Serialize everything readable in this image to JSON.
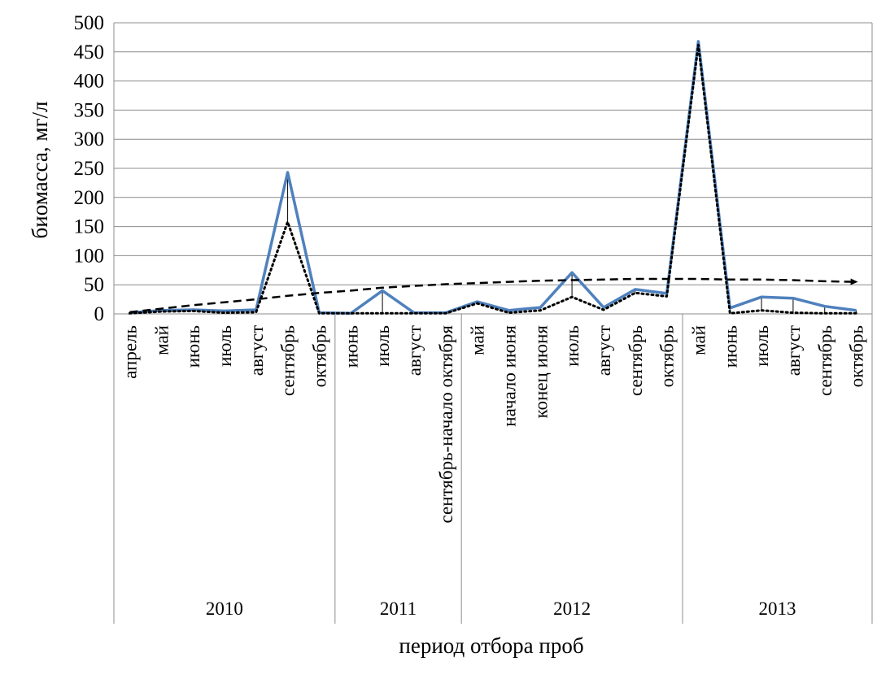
{
  "chart_data": {
    "type": "line",
    "title": "",
    "xlabel": "период отбора проб",
    "ylabel": "биомасса, мг/л",
    "ylim": [
      0,
      500
    ],
    "yticks": [
      0,
      50,
      100,
      150,
      200,
      250,
      300,
      350,
      400,
      450,
      500
    ],
    "grid": true,
    "legend": "none",
    "categories": [
      "апрель",
      "май",
      "июнь",
      "июль",
      "август",
      "сентябрь",
      "октябрь",
      "июнь",
      "июль",
      "август",
      "сентябрь-начало октября",
      "май",
      "начало июня",
      "конец июня",
      "июль",
      "август",
      "сентябрь",
      "октябрь",
      "май",
      "июнь",
      "июль",
      "август",
      "сентябрь",
      "октябрь"
    ],
    "groups": [
      {
        "label": "2010",
        "count": 7
      },
      {
        "label": "2011",
        "count": 4
      },
      {
        "label": "2012",
        "count": 7
      },
      {
        "label": "2013",
        "count": 6
      }
    ],
    "series": [
      {
        "style": "solid",
        "color": "#4f81bd",
        "values": [
          2,
          6,
          7,
          5,
          7,
          243,
          2,
          1,
          40,
          2,
          2,
          21,
          6,
          11,
          71,
          11,
          42,
          35,
          468,
          10,
          29,
          27,
          13,
          6
        ]
      },
      {
        "style": "dotted",
        "color": "#000000",
        "values": [
          1,
          4,
          5,
          2,
          3,
          158,
          1,
          1,
          1,
          1,
          1,
          18,
          2,
          6,
          29,
          7,
          36,
          30,
          462,
          1,
          6,
          2,
          1,
          1
        ]
      },
      {
        "style": "dashed-arrow",
        "color": "#000000",
        "values": [
          3,
          9,
          15,
          20,
          25,
          31,
          36,
          40,
          45,
          48,
          51,
          53,
          55,
          57,
          58,
          59,
          60,
          60,
          60,
          59,
          59,
          58,
          56,
          55
        ]
      }
    ]
  }
}
